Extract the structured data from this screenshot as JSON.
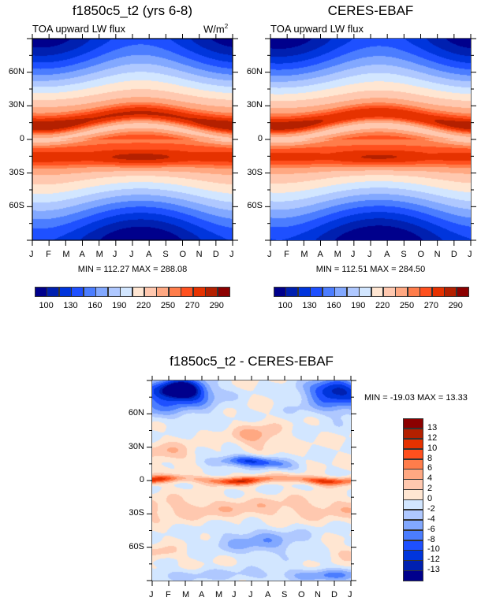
{
  "chart_data": [
    {
      "id": "model",
      "type": "heatmap",
      "title": "f1850c5_t2 (yrs 6-8)",
      "subtitle": "TOA upward LW flux",
      "units": "W/m2",
      "units_base": "W/m",
      "units_sup": "2",
      "xlabel": "",
      "ylabel": "",
      "x_ticks": [
        "J",
        "F",
        "M",
        "A",
        "M",
        "J",
        "J",
        "A",
        "S",
        "O",
        "N",
        "D",
        "J"
      ],
      "y_ticks": [
        {
          "label": "60N",
          "lat": 60
        },
        {
          "label": "30N",
          "lat": 30
        },
        {
          "label": "0",
          "lat": 0
        },
        {
          "label": "30S",
          "lat": -30
        },
        {
          "label": "60S",
          "lat": -60
        }
      ],
      "ylim": [
        -90,
        90
      ],
      "stats": "MIN = 112.27 MAX = 288.08",
      "min": 112.27,
      "max": 288.08,
      "description": "Zonal-mean annual cycle (month vs latitude): high values (>270) along ~15N in DJF and ~15-20N in JJA, peak near 15S in JJA; minima near poles (~110-130 at 80S in JJA, ~160 at 80N in DJF)."
    },
    {
      "id": "obs",
      "type": "heatmap",
      "title": "CERES-EBAF",
      "subtitle": "TOA upward LW flux",
      "x_ticks": [
        "J",
        "F",
        "M",
        "A",
        "M",
        "J",
        "J",
        "A",
        "S",
        "O",
        "N",
        "D",
        "J"
      ],
      "y_ticks": [
        {
          "label": "60N",
          "lat": 60
        },
        {
          "label": "30N",
          "lat": 30
        },
        {
          "label": "0",
          "lat": 0
        },
        {
          "label": "30S",
          "lat": -30
        },
        {
          "label": "60S",
          "lat": -60
        }
      ],
      "ylim": [
        -90,
        90
      ],
      "stats": "MIN = 112.51 MAX = 284.50",
      "min": 112.51,
      "max": 284.5
    },
    {
      "id": "diff",
      "type": "heatmap",
      "title": "f1850c5_t2 - CERES-EBAF",
      "x_ticks": [
        "J",
        "F",
        "M",
        "A",
        "M",
        "J",
        "J",
        "A",
        "S",
        "O",
        "N",
        "D",
        "J"
      ],
      "y_ticks": [
        {
          "label": "60N",
          "lat": 60
        },
        {
          "label": "30N",
          "lat": 30
        },
        {
          "label": "0",
          "lat": 0
        },
        {
          "label": "30S",
          "lat": -30
        },
        {
          "label": "60S",
          "lat": -60
        }
      ],
      "ylim": [
        -90,
        90
      ],
      "stats": "MIN = -19.03 MAX =  13.33",
      "min": -19.03,
      "max": 13.33,
      "description": "Strong negative bias (<-13) near 80N in Jan-Mar; positive band (+8 to +13) along the equator; negative band (-6 to -12) near 10-20N May-Sep; weak mixed biases elsewhere."
    }
  ],
  "colorbars": {
    "mean": {
      "orientation": "horizontal",
      "labels": [
        "100",
        "130",
        "160",
        "190",
        "220",
        "250",
        "270",
        "290"
      ],
      "colors": [
        "#00008c",
        "#0020b0",
        "#0035dc",
        "#1e50ff",
        "#4b7dff",
        "#82a8ff",
        "#afc8ff",
        "#d2e6ff",
        "#ffe6d2",
        "#ffc8af",
        "#ffa882",
        "#ff7d4b",
        "#ff501e",
        "#e63200",
        "#b42000",
        "#8c0000"
      ]
    },
    "diff": {
      "orientation": "vertical",
      "labels": [
        "13",
        "12",
        "10",
        "8",
        "6",
        "4",
        "2",
        "0",
        "-2",
        "-4",
        "-6",
        "-8",
        "-10",
        "-12",
        "-13"
      ],
      "colors": [
        "#8c0000",
        "#b42000",
        "#e63200",
        "#ff501e",
        "#ff7d4b",
        "#ffa882",
        "#ffc8af",
        "#ffe6d2",
        "#d2e6ff",
        "#afc8ff",
        "#82a8ff",
        "#4b7dff",
        "#1e50ff",
        "#0035dc",
        "#0020b0",
        "#00008c"
      ]
    }
  }
}
